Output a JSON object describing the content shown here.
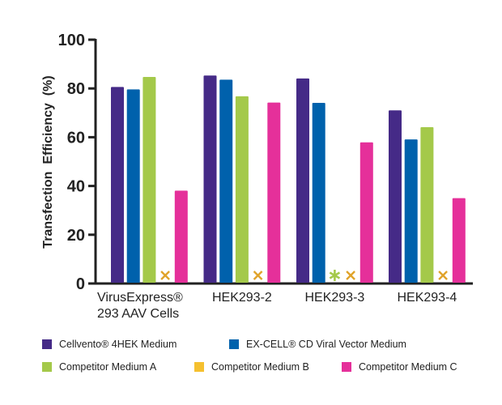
{
  "chart_data": {
    "type": "bar",
    "title": "",
    "xlabel": "",
    "ylabel": "Transfection  Efficiency  (%)",
    "ylim": [
      0,
      100
    ],
    "yticks": [
      0,
      20,
      40,
      60,
      80,
      100
    ],
    "grid": false,
    "legend_position": "bottom",
    "categories": [
      "VirusExpress®\n293 AAV Cells",
      "HEK293-2",
      "HEK293-3",
      "HEK293-4"
    ],
    "series": [
      {
        "name": "Cellvento® 4HEK Medium",
        "color": "#452a87",
        "values": [
          80.6,
          85.3,
          84.1,
          71.0
        ],
        "markers": [
          null,
          null,
          null,
          null
        ]
      },
      {
        "name": "EX-CELL® CD Viral Vector Medium",
        "color": "#0061ac",
        "values": [
          79.6,
          83.6,
          74.1,
          59.1
        ],
        "markers": [
          null,
          null,
          null,
          null
        ]
      },
      {
        "name": "Competitor Medium A",
        "color": "#a4c94a",
        "values": [
          84.7,
          76.8,
          null,
          64.1
        ],
        "markers": [
          null,
          null,
          "asterisk",
          null
        ]
      },
      {
        "name": "Competitor Medium B",
        "color": "#f5c02f",
        "values": [
          null,
          null,
          null,
          null
        ],
        "markers": [
          "x",
          "x",
          "x",
          "x"
        ]
      },
      {
        "name": "Competitor Medium C",
        "color": "#e5309a",
        "values": [
          38.1,
          74.2,
          57.9,
          35.0
        ],
        "markers": [
          null,
          null,
          null,
          null
        ]
      }
    ],
    "marker_colors": {
      "x": "#e0a32a",
      "asterisk": "#a4c94a"
    }
  }
}
